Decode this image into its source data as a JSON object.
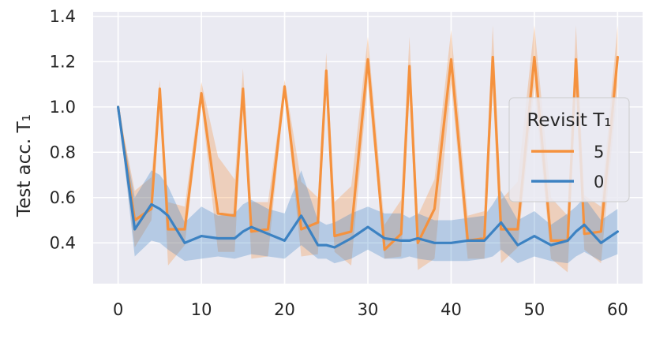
{
  "chart_data": {
    "type": "line",
    "ylabel": "Test acc. T₁",
    "xlim": [
      -3,
      63
    ],
    "ylim": [
      0.22,
      1.42
    ],
    "xticks": [
      0,
      10,
      20,
      30,
      40,
      50,
      60
    ],
    "yticks": [
      0.4,
      0.6,
      0.8,
      1.0,
      1.2,
      1.4
    ],
    "tick_labels_x": [
      "0",
      "10",
      "20",
      "30",
      "40",
      "50",
      "60"
    ],
    "tick_labels_y": [
      "0.4",
      "0.6",
      "0.8",
      "1.0",
      "1.2",
      "1.4"
    ],
    "grid": true,
    "legend": {
      "title": "Revisit T₁",
      "placement": "right"
    },
    "x": [
      0,
      2,
      4,
      5,
      6,
      8,
      10,
      12,
      14,
      15,
      16,
      18,
      20,
      22,
      24,
      25,
      26,
      28,
      30,
      32,
      34,
      35,
      36,
      38,
      40,
      42,
      44,
      45,
      46,
      48,
      50,
      52,
      54,
      55,
      56,
      58,
      60
    ],
    "series": [
      {
        "name": "5",
        "color": "#f5923e",
        "values": [
          1.0,
          0.5,
          0.55,
          1.08,
          0.46,
          0.46,
          1.06,
          0.53,
          0.52,
          1.08,
          0.45,
          0.46,
          1.09,
          0.46,
          0.49,
          1.16,
          0.43,
          0.45,
          1.21,
          0.37,
          0.44,
          1.18,
          0.4,
          0.55,
          1.21,
          0.41,
          0.42,
          1.22,
          0.46,
          0.46,
          1.22,
          0.41,
          0.41,
          1.21,
          0.44,
          0.45,
          1.22
        ],
        "lower": [
          1.0,
          0.38,
          0.5,
          1.04,
          0.3,
          0.39,
          1.02,
          0.36,
          0.36,
          1.05,
          0.33,
          0.34,
          1.06,
          0.34,
          0.35,
          1.08,
          0.36,
          0.3,
          1.11,
          0.33,
          0.34,
          1.06,
          0.28,
          0.33,
          1.1,
          0.33,
          0.33,
          1.09,
          0.31,
          0.38,
          1.09,
          0.33,
          0.27,
          1.06,
          0.37,
          0.31,
          1.09
        ],
        "upper": [
          1.0,
          0.63,
          0.69,
          1.12,
          0.58,
          0.56,
          1.11,
          0.78,
          0.68,
          1.17,
          0.58,
          0.58,
          1.12,
          0.67,
          0.6,
          1.24,
          0.58,
          0.65,
          1.31,
          0.48,
          0.59,
          1.31,
          0.52,
          0.68,
          1.34,
          0.52,
          0.54,
          1.36,
          0.59,
          0.67,
          1.36,
          0.6,
          0.52,
          1.36,
          0.61,
          0.56,
          1.36
        ]
      },
      {
        "name": "0",
        "color": "#3c82c2",
        "values": [
          1.0,
          0.46,
          0.57,
          0.55,
          0.52,
          0.4,
          0.43,
          0.42,
          0.42,
          0.45,
          0.47,
          0.44,
          0.41,
          0.52,
          0.39,
          0.39,
          0.38,
          0.42,
          0.47,
          0.42,
          0.41,
          0.41,
          0.42,
          0.4,
          0.4,
          0.41,
          0.41,
          0.45,
          0.49,
          0.39,
          0.43,
          0.39,
          0.41,
          0.45,
          0.48,
          0.4,
          0.45
        ],
        "lower": [
          1.0,
          0.34,
          0.41,
          0.4,
          0.37,
          0.32,
          0.33,
          0.34,
          0.33,
          0.34,
          0.35,
          0.34,
          0.33,
          0.39,
          0.33,
          0.33,
          0.31,
          0.33,
          0.37,
          0.33,
          0.33,
          0.34,
          0.33,
          0.32,
          0.32,
          0.32,
          0.33,
          0.34,
          0.37,
          0.31,
          0.34,
          0.32,
          0.31,
          0.34,
          0.36,
          0.32,
          0.35
        ],
        "upper": [
          1.0,
          0.6,
          0.72,
          0.7,
          0.65,
          0.49,
          0.56,
          0.52,
          0.53,
          0.57,
          0.59,
          0.55,
          0.53,
          0.72,
          0.5,
          0.48,
          0.49,
          0.53,
          0.56,
          0.53,
          0.53,
          0.51,
          0.53,
          0.5,
          0.5,
          0.51,
          0.52,
          0.57,
          0.63,
          0.5,
          0.54,
          0.48,
          0.53,
          0.56,
          0.6,
          0.5,
          0.55
        ]
      }
    ]
  }
}
